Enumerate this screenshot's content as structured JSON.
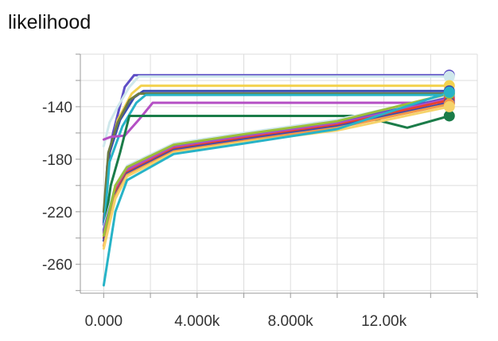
{
  "chart_data": {
    "type": "line",
    "title": "likelihood",
    "xlabel": "",
    "ylabel": "",
    "xlim": [
      -1000,
      16000
    ],
    "ylim": [
      -282,
      -100
    ],
    "grid": true,
    "legend": "none",
    "xticks": [
      0,
      4000,
      8000,
      12000
    ],
    "xtick_labels": [
      "0.000",
      "4.000k",
      "8.000k",
      "12.00k"
    ],
    "yticks": [
      -140,
      -180,
      -220,
      -260
    ],
    "ytick_labels": [
      "-140",
      "-180",
      "-220",
      "-260"
    ],
    "series": [
      {
        "color": "#5e4fc6",
        "x": [
          0,
          150,
          400,
          900,
          1300,
          14800
        ],
        "y": [
          -230,
          -185,
          -160,
          -125,
          -116,
          -116
        ]
      },
      {
        "color": "#cfe8ec",
        "x": [
          0,
          250,
          600,
          1100,
          1500,
          14800
        ],
        "y": [
          -170,
          -152,
          -140,
          -125,
          -117,
          -117
        ]
      },
      {
        "color": "#f3d24f",
        "x": [
          0,
          200,
          600,
          1200,
          1600,
          14800
        ],
        "y": [
          -225,
          -180,
          -150,
          -130,
          -124,
          -124
        ]
      },
      {
        "color": "#3a4bb0",
        "x": [
          0,
          250,
          700,
          1300,
          1700,
          14800
        ],
        "y": [
          -228,
          -175,
          -150,
          -133,
          -128,
          -128
        ]
      },
      {
        "color": "#6c7a42",
        "x": [
          0,
          200,
          600,
          1100,
          1500,
          14800
        ],
        "y": [
          -220,
          -175,
          -152,
          -135,
          -130,
          -130
        ]
      },
      {
        "color": "#27b3c7",
        "x": [
          0,
          250,
          800,
          1400,
          1800,
          14800
        ],
        "y": [
          -235,
          -182,
          -155,
          -137,
          -131,
          -131
        ]
      },
      {
        "color": "#b44fc4",
        "x": [
          0,
          300,
          900,
          1500,
          2100,
          14800
        ],
        "y": [
          -165,
          -163,
          -162,
          -150,
          -137,
          -137
        ]
      },
      {
        "color": "#1b7c49",
        "x": [
          0,
          300,
          700,
          1100,
          11000,
          13000,
          14800
        ],
        "y": [
          -236,
          -200,
          -175,
          -147,
          -147,
          -156,
          -147
        ]
      },
      {
        "color": "#cfe8ec",
        "x": [
          0,
          500,
          1000,
          3000,
          6000,
          10000,
          14800
        ],
        "y": [
          -232,
          -200,
          -185,
          -168,
          -160,
          -150,
          -131
        ]
      },
      {
        "color": "#5e4fc6",
        "x": [
          0,
          500,
          1000,
          3000,
          6000,
          10000,
          14800
        ],
        "y": [
          -234,
          -202,
          -187,
          -170,
          -162,
          -152,
          -133
        ]
      },
      {
        "color": "#b44fc4",
        "x": [
          0,
          500,
          1000,
          3000,
          6000,
          10000,
          14800
        ],
        "y": [
          -236,
          -203,
          -188,
          -171,
          -163,
          -153,
          -134
        ]
      },
      {
        "color": "#e8412d",
        "x": [
          0,
          500,
          1000,
          3000,
          6000,
          10000,
          14800
        ],
        "y": [
          -240,
          -205,
          -190,
          -172,
          -164,
          -154,
          -135
        ]
      },
      {
        "color": "#3a4bb0",
        "x": [
          0,
          500,
          1000,
          3000,
          6000,
          10000,
          14800
        ],
        "y": [
          -242,
          -207,
          -191,
          -173,
          -165,
          -155,
          -137
        ]
      },
      {
        "color": "#f2994a",
        "x": [
          0,
          500,
          1000,
          3000,
          6000,
          10000,
          14800
        ],
        "y": [
          -246,
          -208,
          -192,
          -174,
          -166,
          -156,
          -138
        ]
      },
      {
        "color": "#f6d36b",
        "x": [
          0,
          500,
          1000,
          3000,
          6000,
          10000,
          14800
        ],
        "y": [
          -248,
          -210,
          -193,
          -175,
          -167,
          -158,
          -140
        ]
      },
      {
        "color": "#9bbf3b",
        "x": [
          0,
          500,
          1000,
          3000,
          6000,
          10000,
          14800
        ],
        "y": [
          -238,
          -200,
          -186,
          -169,
          -161,
          -151,
          -130
        ]
      },
      {
        "color": "#27b3c7",
        "x": [
          0,
          500,
          1000,
          3000,
          6000,
          10000,
          14800
        ],
        "y": [
          -276,
          -220,
          -196,
          -176,
          -168,
          -157,
          -129
        ]
      }
    ]
  }
}
